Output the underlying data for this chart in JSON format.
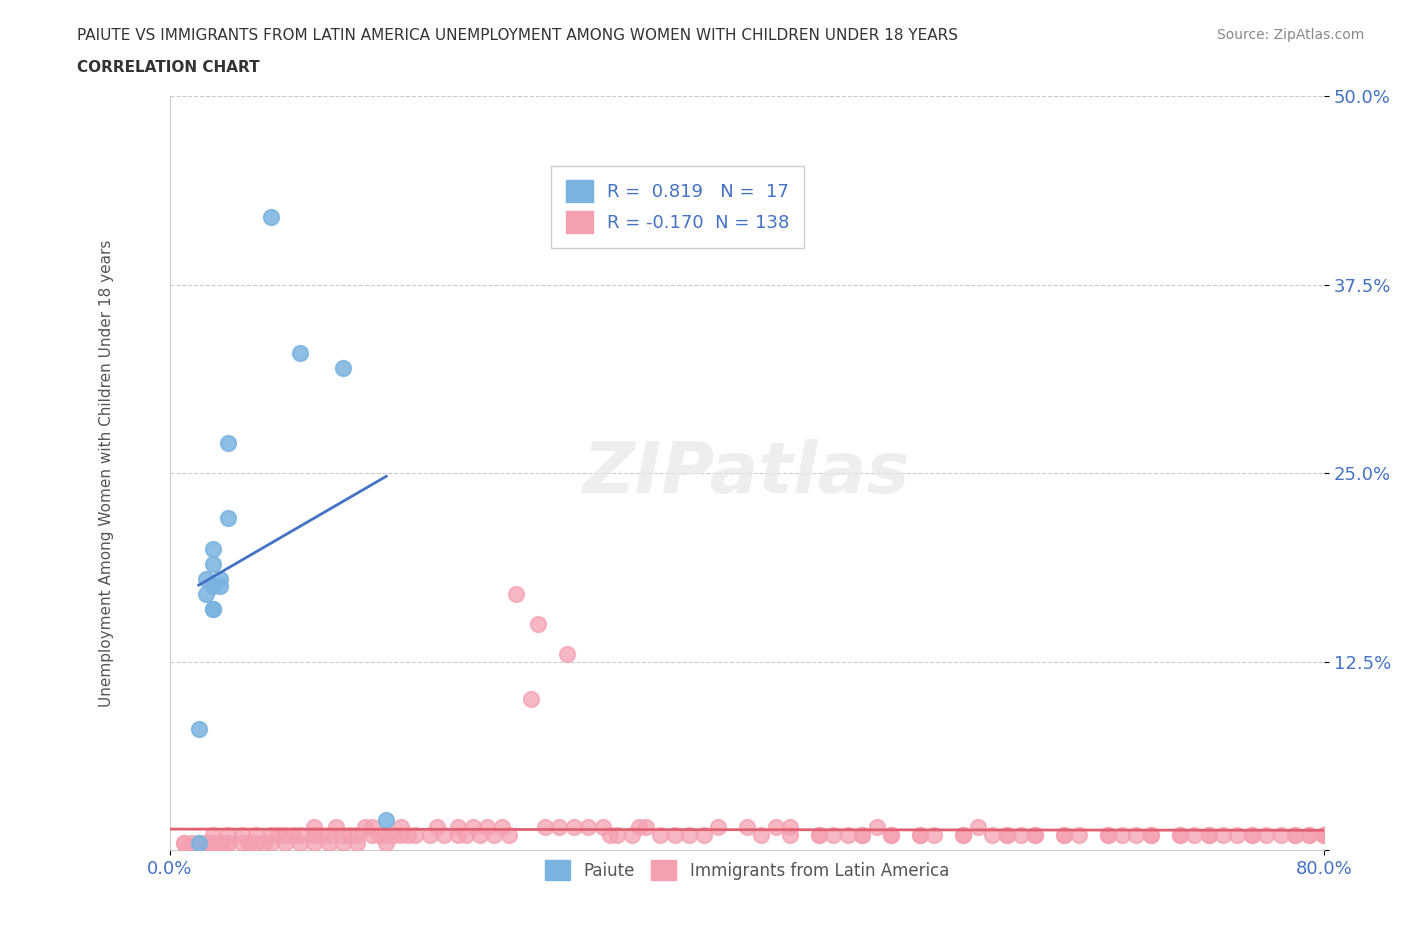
{
  "title_line1": "PAIUTE VS IMMIGRANTS FROM LATIN AMERICA UNEMPLOYMENT AMONG WOMEN WITH CHILDREN UNDER 18 YEARS",
  "title_line2": "CORRELATION CHART",
  "source_text": "Source: ZipAtlas.com",
  "xlabel": "",
  "ylabel": "Unemployment Among Women with Children Under 18 years",
  "xlim": [
    0.0,
    0.8
  ],
  "ylim": [
    0.0,
    0.5
  ],
  "yticks": [
    0.0,
    0.125,
    0.25,
    0.375,
    0.5
  ],
  "ytick_labels": [
    "",
    "12.5%",
    "25.0%",
    "37.5%",
    "50.0%"
  ],
  "xtick_labels": [
    "0.0%",
    "80.0%"
  ],
  "xticks": [
    0.0,
    0.8
  ],
  "paiute_color": "#7ab3e0",
  "latin_color": "#f4a0b0",
  "paiute_line_color": "#4472c4",
  "latin_line_color": "#e06070",
  "legend_r1": "0.819",
  "legend_n1": "17",
  "legend_r2": "-0.170",
  "legend_n2": "138",
  "watermark": "ZIPatlas",
  "paiute_x": [
    0.02,
    0.04,
    0.03,
    0.03,
    0.03,
    0.035,
    0.04,
    0.035,
    0.025,
    0.03,
    0.025,
    0.03,
    0.07,
    0.09,
    0.12,
    0.15,
    0.02
  ],
  "paiute_y": [
    0.005,
    0.22,
    0.2,
    0.19,
    0.16,
    0.175,
    0.27,
    0.18,
    0.18,
    0.175,
    0.17,
    0.16,
    0.42,
    0.33,
    0.32,
    0.02,
    0.08
  ],
  "latin_x": [
    0.01,
    0.01,
    0.015,
    0.02,
    0.02,
    0.025,
    0.025,
    0.03,
    0.03,
    0.03,
    0.035,
    0.035,
    0.04,
    0.04,
    0.04,
    0.05,
    0.05,
    0.055,
    0.055,
    0.06,
    0.06,
    0.065,
    0.07,
    0.07,
    0.075,
    0.08,
    0.08,
    0.085,
    0.09,
    0.09,
    0.1,
    0.1,
    0.1,
    0.1,
    0.105,
    0.11,
    0.11,
    0.115,
    0.12,
    0.12,
    0.125,
    0.13,
    0.13,
    0.135,
    0.14,
    0.14,
    0.145,
    0.15,
    0.15,
    0.155,
    0.16,
    0.16,
    0.165,
    0.17,
    0.18,
    0.185,
    0.19,
    0.2,
    0.2,
    0.205,
    0.21,
    0.215,
    0.22,
    0.225,
    0.23,
    0.235,
    0.24,
    0.25,
    0.255,
    0.26,
    0.27,
    0.275,
    0.28,
    0.29,
    0.3,
    0.305,
    0.31,
    0.32,
    0.325,
    0.33,
    0.34,
    0.35,
    0.36,
    0.37,
    0.38,
    0.4,
    0.41,
    0.42,
    0.43,
    0.45,
    0.46,
    0.47,
    0.48,
    0.49,
    0.5,
    0.52,
    0.53,
    0.55,
    0.56,
    0.57,
    0.58,
    0.59,
    0.6,
    0.62,
    0.63,
    0.65,
    0.66,
    0.67,
    0.68,
    0.7,
    0.71,
    0.72,
    0.73,
    0.74,
    0.75,
    0.76,
    0.77,
    0.78,
    0.79,
    0.8,
    0.8,
    0.8,
    0.79,
    0.78,
    0.75,
    0.72,
    0.7,
    0.68,
    0.65,
    0.62,
    0.6,
    0.58,
    0.55,
    0.52,
    0.5,
    0.48,
    0.45,
    0.43
  ],
  "latin_y": [
    0.005,
    0.005,
    0.005,
    0.005,
    0.005,
    0.005,
    0.005,
    0.005,
    0.005,
    0.01,
    0.005,
    0.005,
    0.01,
    0.005,
    0.005,
    0.005,
    0.01,
    0.005,
    0.005,
    0.005,
    0.01,
    0.005,
    0.005,
    0.01,
    0.01,
    0.005,
    0.01,
    0.01,
    0.005,
    0.01,
    0.005,
    0.01,
    0.01,
    0.015,
    0.01,
    0.005,
    0.01,
    0.015,
    0.005,
    0.01,
    0.01,
    0.005,
    0.01,
    0.015,
    0.01,
    0.015,
    0.01,
    0.005,
    0.01,
    0.01,
    0.01,
    0.015,
    0.01,
    0.01,
    0.01,
    0.015,
    0.01,
    0.01,
    0.015,
    0.01,
    0.015,
    0.01,
    0.015,
    0.01,
    0.015,
    0.01,
    0.17,
    0.1,
    0.15,
    0.015,
    0.015,
    0.13,
    0.015,
    0.015,
    0.015,
    0.01,
    0.01,
    0.01,
    0.015,
    0.015,
    0.01,
    0.01,
    0.01,
    0.01,
    0.015,
    0.015,
    0.01,
    0.015,
    0.015,
    0.01,
    0.01,
    0.01,
    0.01,
    0.015,
    0.01,
    0.01,
    0.01,
    0.01,
    0.015,
    0.01,
    0.01,
    0.01,
    0.01,
    0.01,
    0.01,
    0.01,
    0.01,
    0.01,
    0.01,
    0.01,
    0.01,
    0.01,
    0.01,
    0.01,
    0.01,
    0.01,
    0.01,
    0.01,
    0.01,
    0.01,
    0.01,
    0.01,
    0.01,
    0.01,
    0.01,
    0.01,
    0.01,
    0.01,
    0.01,
    0.01,
    0.01,
    0.01,
    0.01,
    0.01,
    0.01,
    0.01,
    0.01,
    0.01
  ]
}
